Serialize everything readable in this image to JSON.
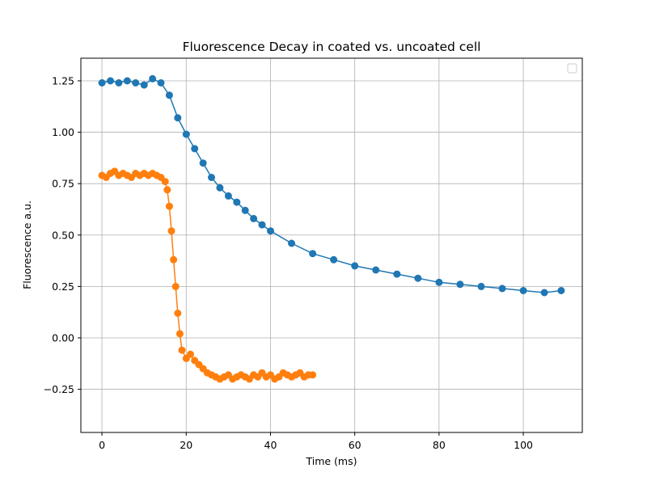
{
  "chart_data": {
    "type": "scatter",
    "title": "Fluorescence Decay in coated vs. uncoated cell",
    "xlabel": "Time (ms)",
    "ylabel": "Fluorescence a.u.",
    "xlim": [
      -5,
      114
    ],
    "ylim": [
      -0.46,
      1.36
    ],
    "x_ticks": [
      0,
      20,
      40,
      60,
      80,
      100
    ],
    "x_tick_labels": [
      "0",
      "20",
      "40",
      "60",
      "80",
      "100"
    ],
    "y_ticks": [
      -0.25,
      0.0,
      0.25,
      0.5,
      0.75,
      1.0,
      1.25
    ],
    "y_tick_labels": [
      "−0.25",
      "0.00",
      "0.25",
      "0.50",
      "0.75",
      "1.00",
      "1.25"
    ],
    "grid": true,
    "legend": {
      "position": "upper right",
      "entries": []
    },
    "series": [
      {
        "color": "#1f77b4",
        "style": "markers-with-line",
        "x": [
          0,
          2,
          4,
          6,
          8,
          10,
          12,
          14,
          16,
          18,
          20,
          22,
          24,
          26,
          28,
          30,
          32,
          34,
          36,
          38,
          40,
          45,
          50,
          55,
          60,
          65,
          70,
          75,
          80,
          85,
          90,
          95,
          100,
          105,
          109
        ],
        "y": [
          1.24,
          1.25,
          1.24,
          1.25,
          1.24,
          1.23,
          1.26,
          1.24,
          1.18,
          1.07,
          0.99,
          0.92,
          0.85,
          0.78,
          0.73,
          0.69,
          0.66,
          0.62,
          0.58,
          0.55,
          0.52,
          0.46,
          0.41,
          0.38,
          0.35,
          0.33,
          0.31,
          0.29,
          0.27,
          0.26,
          0.25,
          0.24,
          0.23,
          0.22,
          0.23
        ]
      },
      {
        "color": "#ff7f0e",
        "style": "markers-with-line",
        "x": [
          0,
          1,
          2,
          3,
          4,
          5,
          6,
          7,
          8,
          9,
          10,
          11,
          12,
          13,
          14,
          15,
          15.5,
          16,
          16.5,
          17,
          17.5,
          18,
          18.5,
          19,
          20,
          21,
          22,
          23,
          24,
          25,
          26,
          27,
          28,
          29,
          30,
          31,
          32,
          33,
          34,
          35,
          36,
          37,
          38,
          39,
          40,
          41,
          42,
          43,
          44,
          45,
          46,
          47,
          48,
          49,
          50
        ],
        "y": [
          0.79,
          0.78,
          0.8,
          0.81,
          0.79,
          0.8,
          0.79,
          0.78,
          0.8,
          0.79,
          0.8,
          0.79,
          0.8,
          0.79,
          0.78,
          0.76,
          0.72,
          0.64,
          0.52,
          0.38,
          0.25,
          0.12,
          0.02,
          -0.06,
          -0.1,
          -0.08,
          -0.11,
          -0.13,
          -0.15,
          -0.17,
          -0.18,
          -0.19,
          -0.2,
          -0.19,
          -0.18,
          -0.2,
          -0.19,
          -0.18,
          -0.19,
          -0.2,
          -0.18,
          -0.19,
          -0.17,
          -0.19,
          -0.18,
          -0.2,
          -0.19,
          -0.17,
          -0.18,
          -0.19,
          -0.18,
          -0.17,
          -0.19,
          -0.18,
          -0.18
        ]
      }
    ]
  }
}
